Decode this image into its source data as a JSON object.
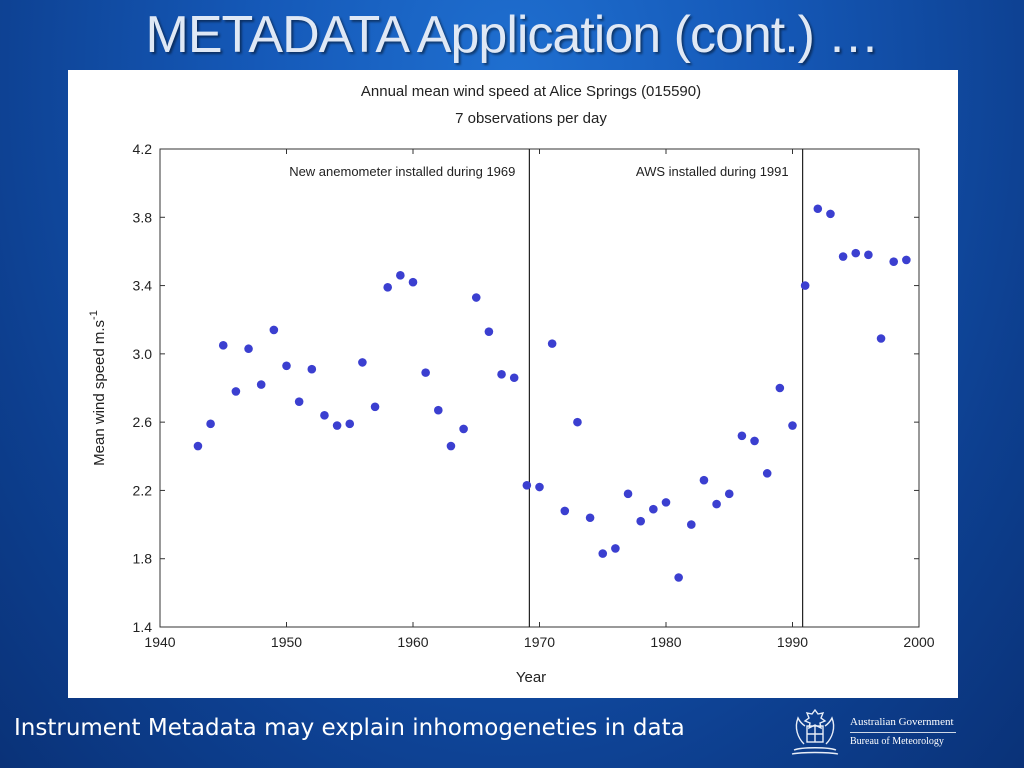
{
  "slide": {
    "title": "METADATA Application (cont.) …",
    "caption": "Instrument Metadata may explain inhomogeneties in data"
  },
  "logo": {
    "line1": "Australian Government",
    "line2": "Bureau of Meteorology"
  },
  "colors": {
    "point": "#3b3fd0",
    "background": "#1559b8"
  },
  "chart_data": {
    "type": "scatter",
    "title": "Annual mean wind speed at Alice Springs (015590)",
    "subtitle": "7 observations per day",
    "xlabel": "Year",
    "ylabel": "Mean wind speed    m.s",
    "ylabel_superscript": "-1",
    "xlim": [
      1940,
      2000
    ],
    "ylim": [
      1.4,
      4.2
    ],
    "xticks": [
      1940,
      1950,
      1960,
      1970,
      1980,
      1990,
      2000
    ],
    "yticks": [
      1.4,
      1.8,
      2.2,
      2.6,
      3.0,
      3.4,
      3.8,
      4.2
    ],
    "ytick_labels": [
      "1.4",
      "1.8",
      "2.2",
      "2.6",
      "3.0",
      "3.4",
      "3.8",
      "4.2"
    ],
    "grid": false,
    "vlines": [
      {
        "x": 1969.2,
        "label": "New anemometer installed during 1969"
      },
      {
        "x": 1990.8,
        "label": "AWS installed during 1991"
      }
    ],
    "series": [
      {
        "x": [
          1943,
          1944,
          1945,
          1946,
          1947,
          1948,
          1949,
          1950,
          1951,
          1952,
          1953,
          1954,
          1955,
          1956,
          1957,
          1958,
          1959,
          1960,
          1961,
          1962,
          1963,
          1964,
          1965,
          1966,
          1967,
          1968,
          1969,
          1970,
          1971,
          1972,
          1973,
          1974,
          1975,
          1976,
          1977,
          1978,
          1979,
          1980,
          1981,
          1982,
          1983,
          1984,
          1985,
          1986,
          1987,
          1988,
          1989,
          1990,
          1991,
          1992,
          1993,
          1994,
          1995,
          1996,
          1997,
          1998,
          1999
        ],
        "y": [
          2.46,
          2.59,
          3.05,
          2.78,
          3.03,
          2.82,
          3.14,
          2.93,
          2.72,
          2.91,
          2.64,
          2.58,
          2.59,
          2.95,
          2.69,
          3.39,
          3.46,
          3.42,
          2.89,
          2.67,
          2.46,
          2.56,
          3.33,
          3.13,
          2.88,
          2.86,
          2.23,
          2.22,
          3.06,
          2.08,
          2.6,
          2.04,
          1.83,
          1.86,
          2.18,
          2.02,
          2.09,
          2.13,
          1.69,
          2.0,
          2.26,
          2.12,
          2.18,
          2.52,
          2.49,
          2.3,
          2.8,
          2.58,
          3.4,
          3.85,
          3.82,
          3.57,
          3.59,
          3.58,
          3.09,
          3.54,
          3.55
        ]
      }
    ]
  }
}
